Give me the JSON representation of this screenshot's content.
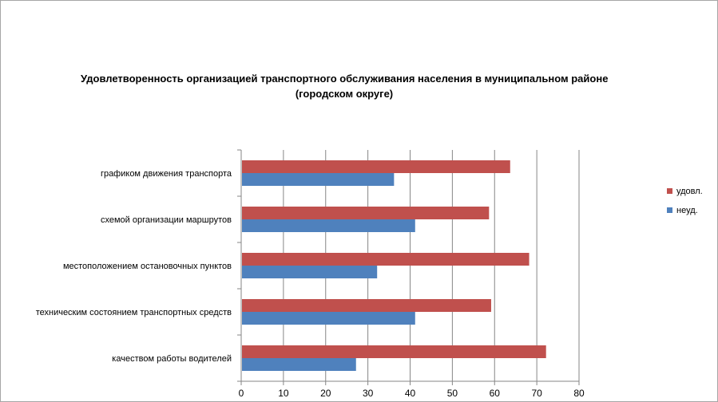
{
  "chart_data": {
    "type": "bar",
    "orientation": "horizontal",
    "title": "Удовлетворенность организацией транспортного обслуживания населения в муниципальном районе (городском округе)",
    "title_lines": [
      "Удовлетворенность организацией транспортного обслуживания населения в муниципальном районе",
      "(городском округе)"
    ],
    "categories": [
      "графиком движения транспорта",
      "схемой организации маршрутов",
      "местоположением остановочных пунктов",
      "техническим состоянием транспортных средств",
      "качеством работы водителей"
    ],
    "series": [
      {
        "name": "удовл.",
        "color": "#c0504d",
        "values": [
          63.5,
          58.5,
          68,
          59,
          72
        ]
      },
      {
        "name": "неуд.",
        "color": "#4f81bd",
        "values": [
          36,
          41,
          32,
          41,
          27
        ]
      }
    ],
    "xlim": [
      0,
      80
    ],
    "xticks": [
      0,
      10,
      20,
      30,
      40,
      50,
      60,
      70,
      80
    ],
    "grid": true,
    "legend_position": "right",
    "xlabel": "",
    "ylabel": ""
  }
}
